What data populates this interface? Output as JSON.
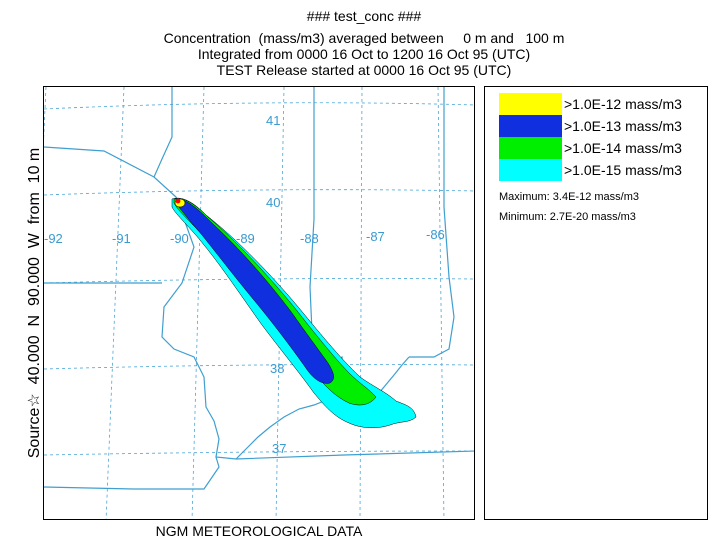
{
  "title": {
    "line1": "### test_conc ###",
    "line2": "Concentration  (mass/m3) averaged between     0 m and   100 m",
    "line3": "Integrated from 0000 16 Oct to 1200 16 Oct 95 (UTC)",
    "line4": "TEST Release started at 0000 16 Oct 95 (UTC)"
  },
  "map": {
    "latitude_labels": [
      "41",
      "40",
      "38",
      "37"
    ],
    "longitude_labels": [
      "-92",
      "-91",
      "-90",
      "-89",
      "-88",
      "-87",
      "-86"
    ],
    "grid_color": "#4aa6d6",
    "boundary_color": "#3f9fd0",
    "source_marker_color": "#ff0000"
  },
  "left_label": "Source☆  40.000  N  90.000  W  from  10 m",
  "bottom_label": "NGM  METEOROLOGICAL DATA",
  "legend": {
    "items": [
      {
        "label": ">1.0E-12 mass/m3",
        "color": "#ffff00"
      },
      {
        "label": ">1.0E-13 mass/m3",
        "color": "#1030e0"
      },
      {
        "label": ">1.0E-14 mass/m3",
        "color": "#00ee00"
      },
      {
        "label": ">1.0E-15 mass/m3",
        "color": "#00ffff"
      }
    ],
    "maximum": "Maximum: 3.4E-12 mass/m3",
    "minimum": "Minimum: 2.7E-20 mass/m3"
  }
}
